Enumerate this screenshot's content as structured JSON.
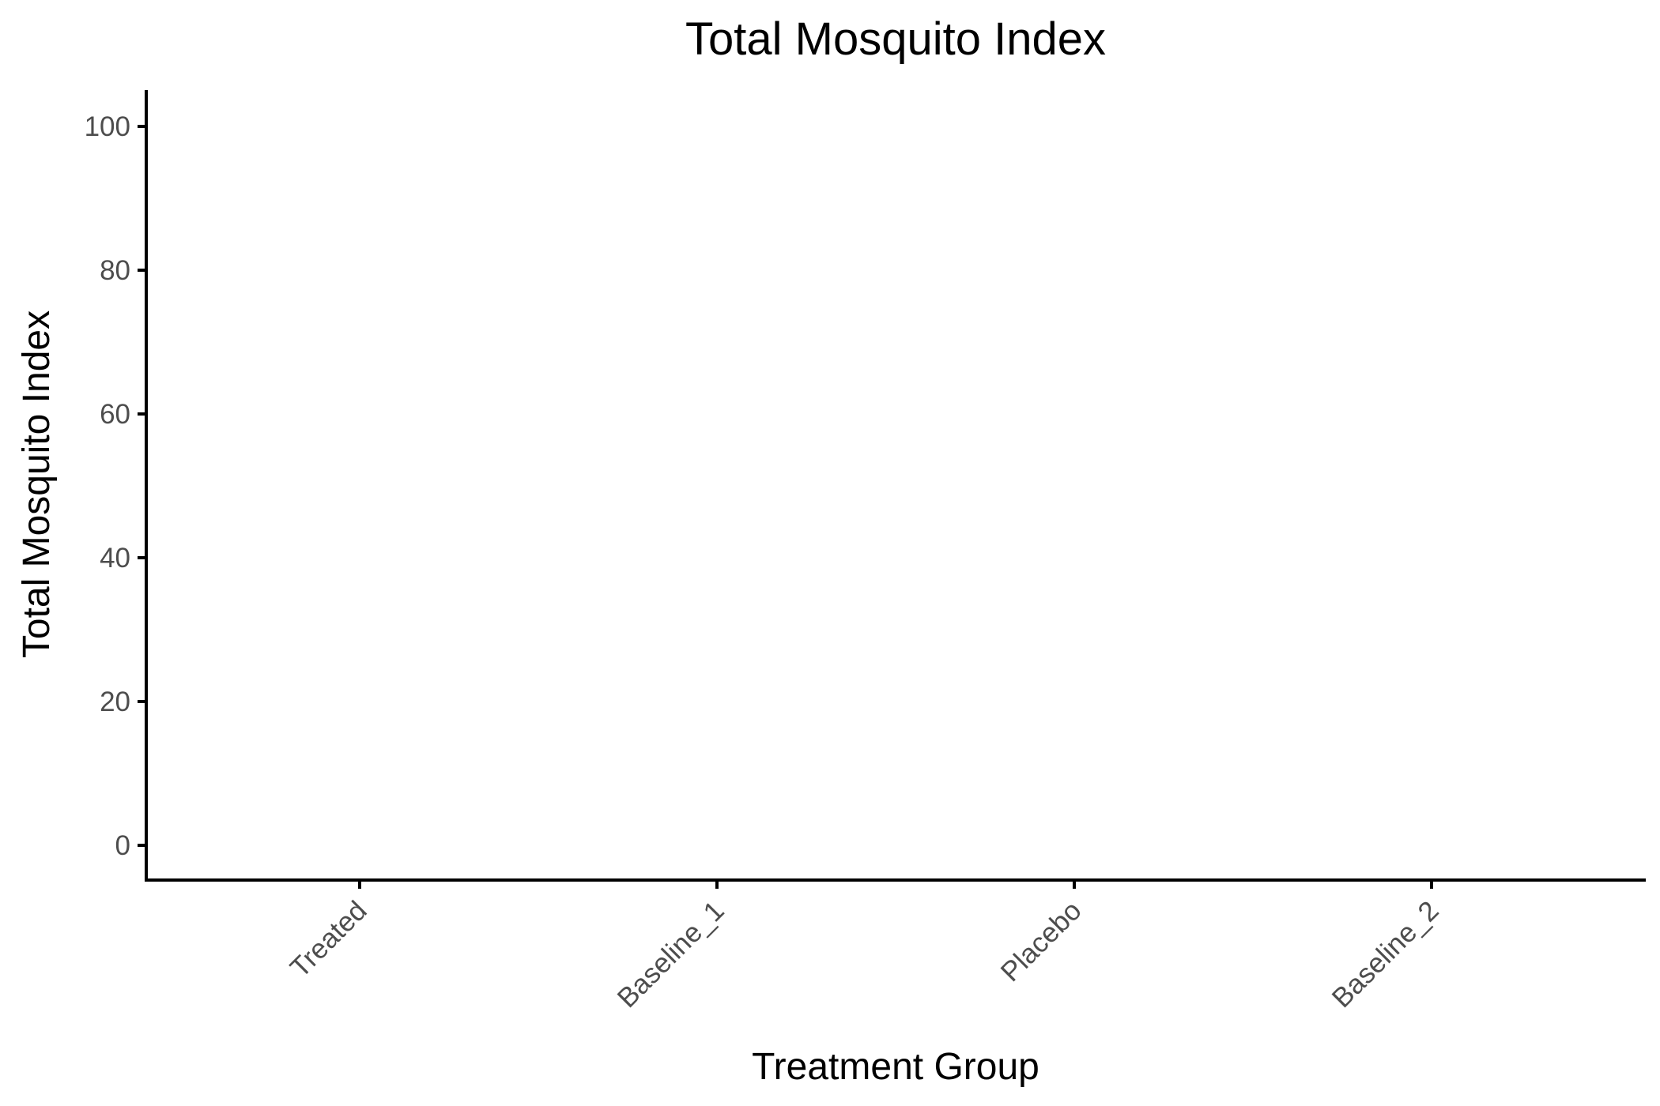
{
  "chart_data": {
    "type": "bar",
    "title": "Total Mosquito Index",
    "xlabel": "Treatment Group",
    "ylabel": "Total Mosquito Index",
    "categories": [
      "Treated",
      "Baseline_1",
      "Placebo",
      "Baseline_2"
    ],
    "values": [
      null,
      null,
      null,
      null
    ],
    "ylim": [
      -5,
      105
    ],
    "yticks": [
      0,
      20,
      40,
      60,
      80,
      100
    ],
    "ytick_labels": [
      "0",
      "20",
      "40",
      "60",
      "80",
      "100"
    ],
    "grid": false,
    "legend": "none"
  }
}
